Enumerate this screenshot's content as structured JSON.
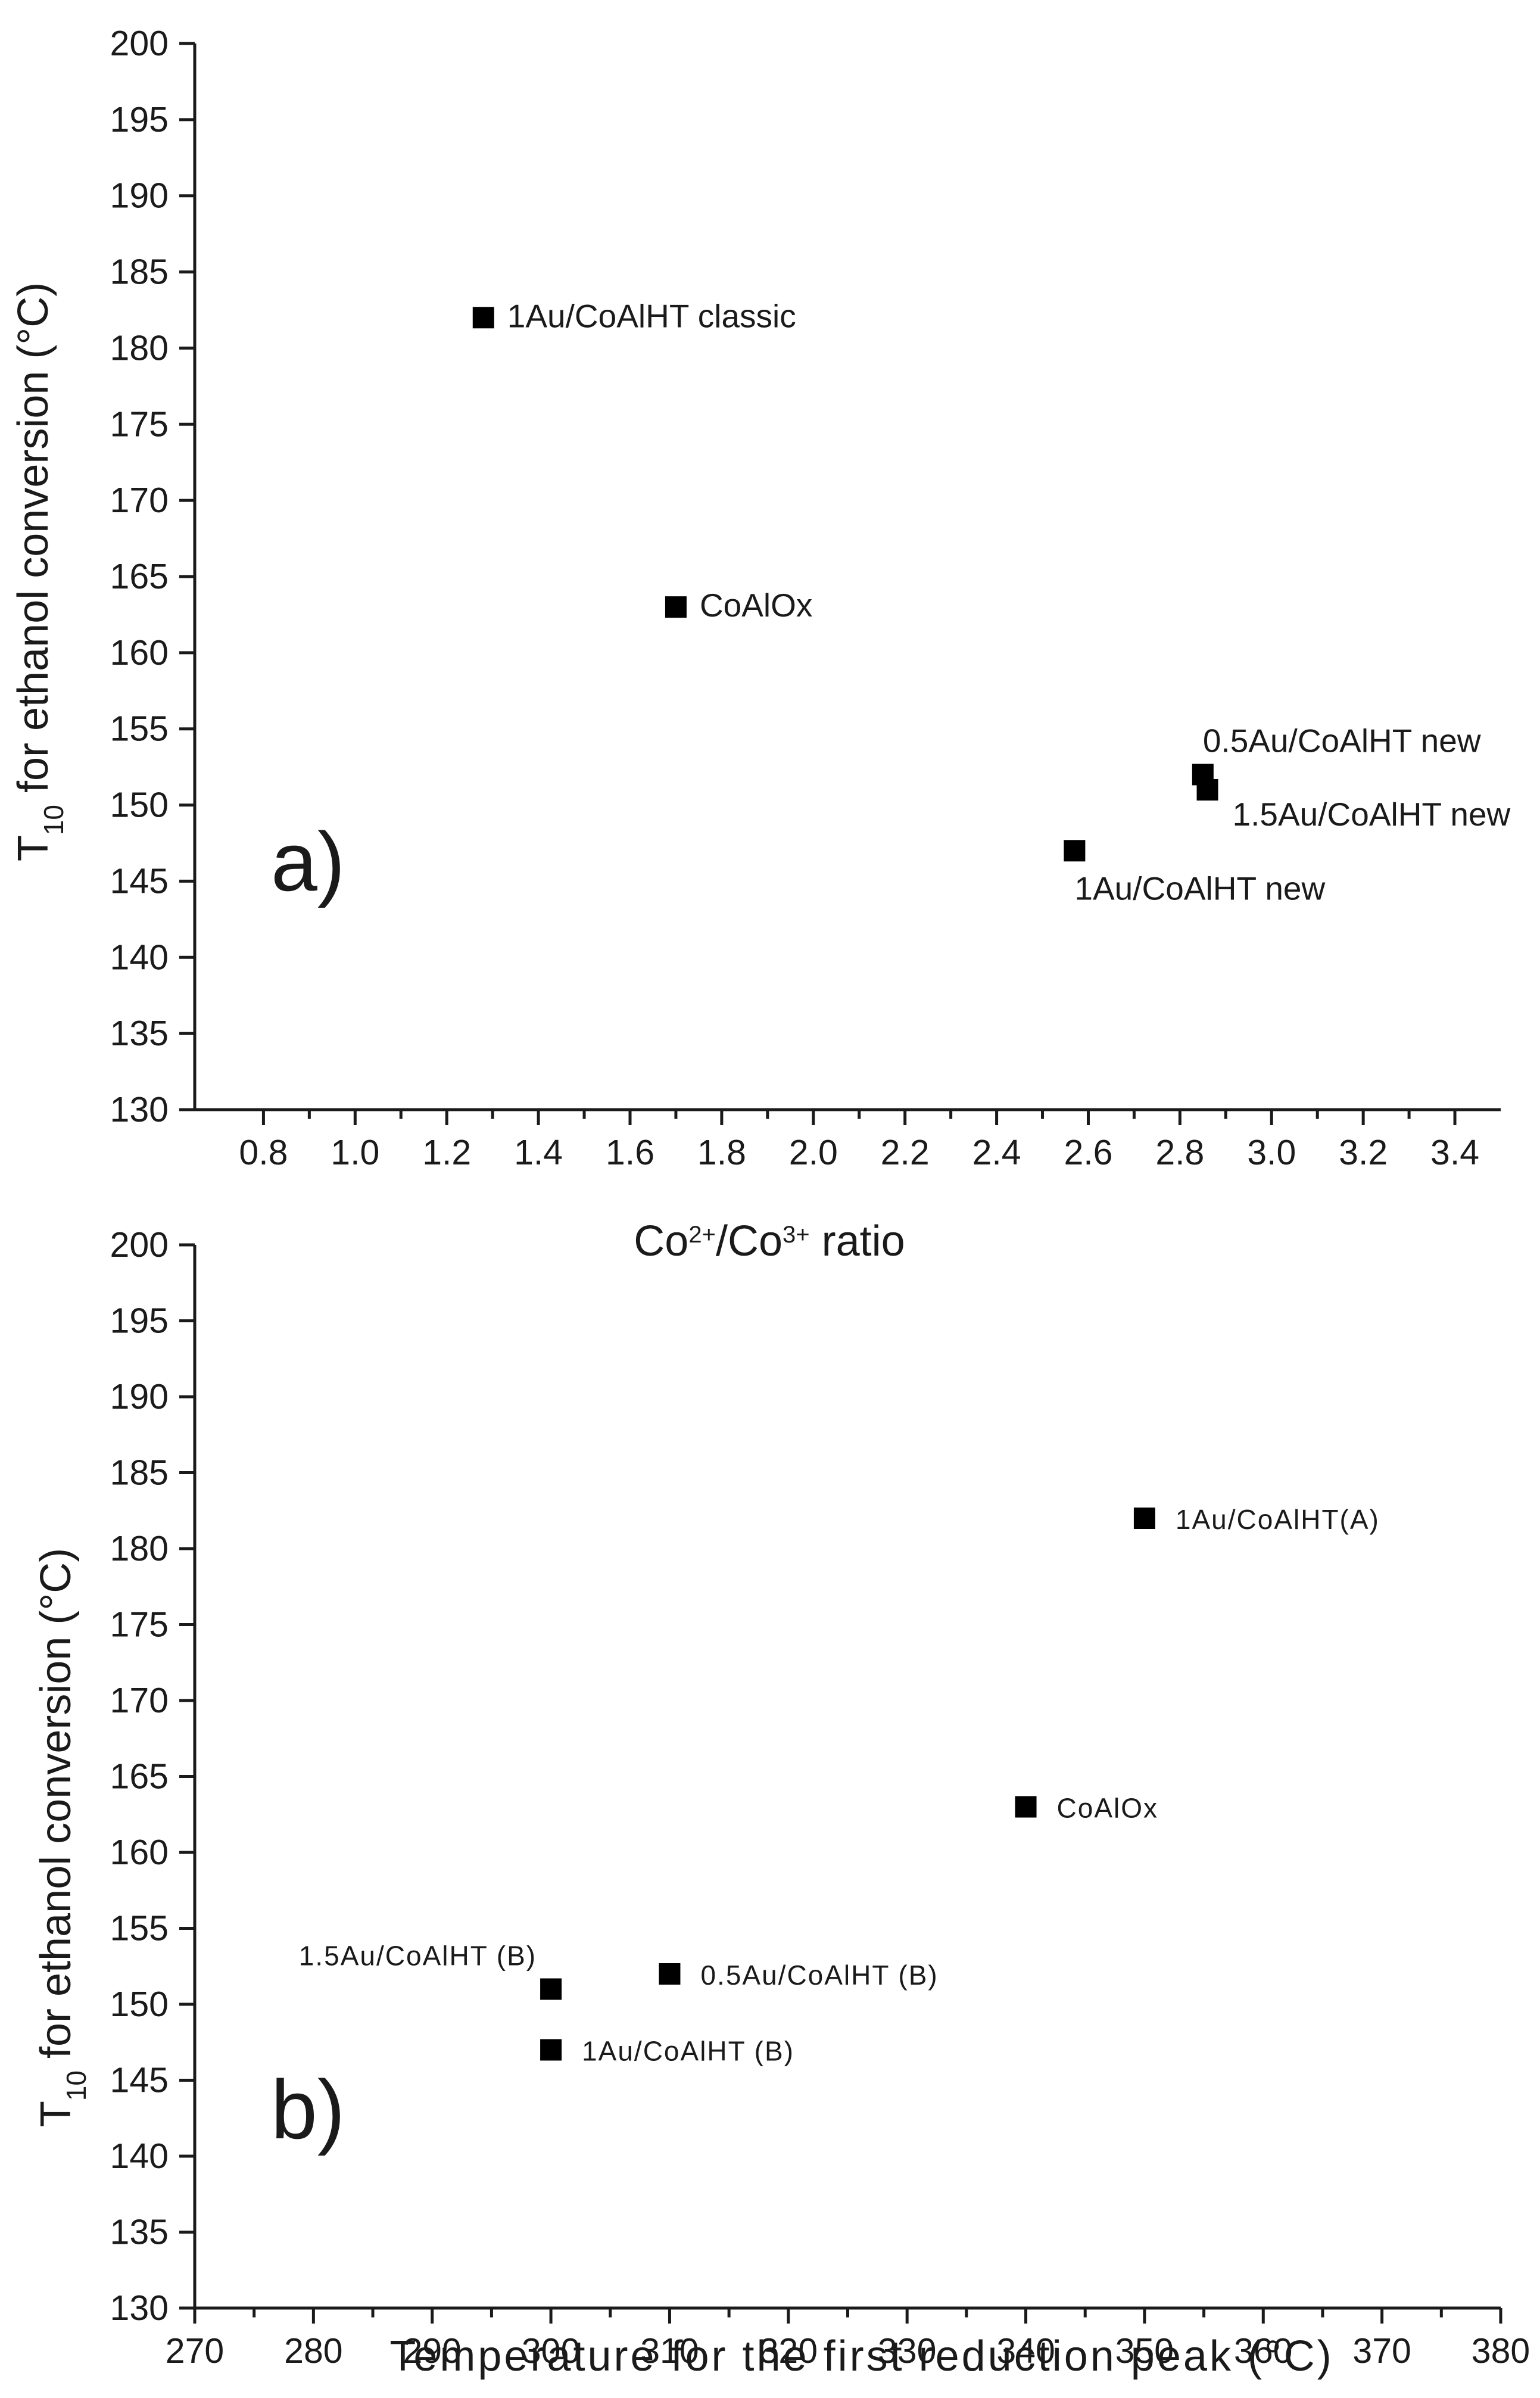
{
  "chart_data": [
    {
      "type": "scatter",
      "panel": "a)",
      "xlabel_main": "Co",
      "xlabel_sup1": "2+",
      "xlabel_mid": "/Co",
      "xlabel_sup2": "3+",
      "xlabel_tail": " ratio",
      "ylabel_main": "T",
      "ylabel_sub": "10",
      "ylabel_tail": " for ethanol conversion (°C)",
      "xlim": [
        0.65,
        3.5
      ],
      "ylim": [
        130,
        200
      ],
      "xticks": [
        0.8,
        1.0,
        1.2,
        1.4,
        1.6,
        1.8,
        2.0,
        2.2,
        2.4,
        2.6,
        2.8,
        3.0,
        3.2,
        3.4
      ],
      "xtick_labels": [
        "0.8",
        "1.0",
        "1.2",
        "1.4",
        "1.6",
        "1.8",
        "2.0",
        "2.2",
        "2.4",
        "2.6",
        "2.8",
        "3.0",
        "3.2",
        "3.4"
      ],
      "yticks": [
        130,
        135,
        140,
        145,
        150,
        155,
        160,
        165,
        170,
        175,
        180,
        185,
        190,
        195,
        200
      ],
      "ytick_labels": [
        "130",
        "135",
        "140",
        "145",
        "150",
        "155",
        "160",
        "165",
        "170",
        "175",
        "180",
        "185",
        "190",
        "195",
        "200"
      ],
      "points": [
        {
          "x": 1.28,
          "y": 182,
          "label": "1Au/CoAlHT classic",
          "pos": "right"
        },
        {
          "x": 1.7,
          "y": 163,
          "label": "CoAlOx",
          "pos": "right"
        },
        {
          "x": 2.85,
          "y": 152,
          "label": "0.5Au/CoAlHT new",
          "pos": "above"
        },
        {
          "x": 2.86,
          "y": 151,
          "label": "1.5Au/CoAlHT new",
          "pos": "below-right"
        },
        {
          "x": 2.57,
          "y": 147,
          "label": "1Au/CoAlHT new",
          "pos": "below"
        }
      ]
    },
    {
      "type": "scatter",
      "panel": "b)",
      "xlabel": "Temperature for the first reduction peak (°C)",
      "ylabel_main": "T",
      "ylabel_sub": "10",
      "ylabel_tail": " for ethanol conversion (°C)",
      "xlim": [
        270,
        380
      ],
      "ylim": [
        130,
        200
      ],
      "xticks": [
        270,
        280,
        290,
        300,
        310,
        320,
        330,
        340,
        350,
        360,
        370,
        380
      ],
      "xtick_labels": [
        "270",
        "280",
        "290",
        "300",
        "310",
        "320",
        "330",
        "340",
        "350",
        "360",
        "370",
        "380"
      ],
      "yticks": [
        130,
        135,
        140,
        145,
        150,
        155,
        160,
        165,
        170,
        175,
        180,
        185,
        190,
        195,
        200
      ],
      "ytick_labels": [
        "130",
        "135",
        "140",
        "145",
        "150",
        "155",
        "160",
        "165",
        "170",
        "175",
        "180",
        "185",
        "190",
        "195",
        "200"
      ],
      "points": [
        {
          "x": 350,
          "y": 182,
          "label": "1Au/CoAlHT(A)",
          "pos": "right"
        },
        {
          "x": 340,
          "y": 163,
          "label": "CoAlOx",
          "pos": "right"
        },
        {
          "x": 300,
          "y": 151,
          "label": "1.5Au/CoAlHT (B)",
          "pos": "upper-left"
        },
        {
          "x": 310,
          "y": 152,
          "label": "0.5Au/CoAlHT (B)",
          "pos": "right"
        },
        {
          "x": 300,
          "y": 147,
          "label": "1Au/CoAlHT (B)",
          "pos": "right"
        }
      ]
    }
  ]
}
